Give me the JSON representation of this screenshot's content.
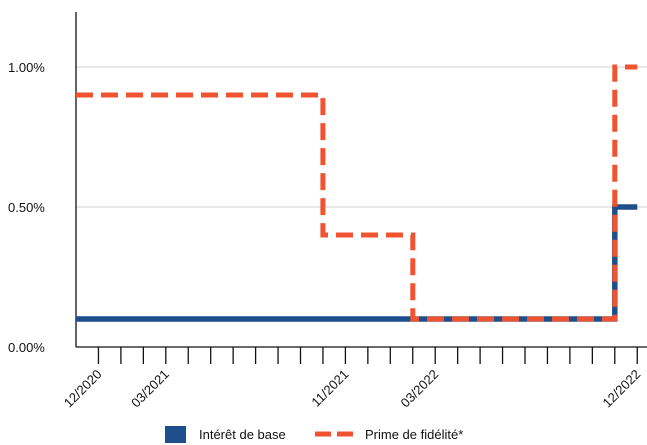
{
  "chart_data": {
    "type": "line",
    "title": "",
    "xlabel": "",
    "ylabel": "",
    "step": true,
    "ylim": [
      0,
      1.2
    ],
    "xlim": [
      "2020-11",
      "2022-12"
    ],
    "y_ticks": [
      {
        "value": 0,
        "label": "0.00%"
      },
      {
        "value": 0.5,
        "label": "0.50%"
      },
      {
        "value": 1.0,
        "label": "1.00%"
      }
    ],
    "x_tick_months": [
      "2020-12",
      "2021-01",
      "2021-02",
      "2021-03",
      "2021-04",
      "2021-05",
      "2021-06",
      "2021-07",
      "2021-08",
      "2021-09",
      "2021-10",
      "2021-11",
      "2021-12",
      "2022-01",
      "2022-02",
      "2022-03",
      "2022-04",
      "2022-05",
      "2022-06",
      "2022-07",
      "2022-08",
      "2022-09",
      "2022-10",
      "2022-11",
      "2022-12"
    ],
    "x_tick_labels": [
      {
        "month": "2020-12",
        "label": "12/2020"
      },
      {
        "month": "2021-03",
        "label": "03/2021"
      },
      {
        "month": "2021-11",
        "label": "11/2021"
      },
      {
        "month": "2022-03",
        "label": "03/2022"
      },
      {
        "month": "2022-12",
        "label": "12/2022"
      }
    ],
    "series": [
      {
        "name": "Intérêt de base",
        "color": "#1f4e8c",
        "style": "solid",
        "points": [
          [
            "2020-11",
            0.1
          ],
          [
            "2022-11",
            0.1
          ],
          [
            "2022-11",
            0.5
          ],
          [
            "2022-12",
            0.5
          ]
        ]
      },
      {
        "name": "Prime de fidélité*",
        "color": "#f0532f",
        "style": "dashed",
        "points": [
          [
            "2020-11",
            0.9
          ],
          [
            "2021-10",
            0.9
          ],
          [
            "2021-10",
            0.4
          ],
          [
            "2022-02",
            0.4
          ],
          [
            "2022-02",
            0.1
          ],
          [
            "2022-11",
            0.1
          ],
          [
            "2022-11",
            1.0
          ],
          [
            "2022-12",
            1.0
          ]
        ]
      }
    ],
    "grid": true,
    "legend_position": "bottom"
  }
}
